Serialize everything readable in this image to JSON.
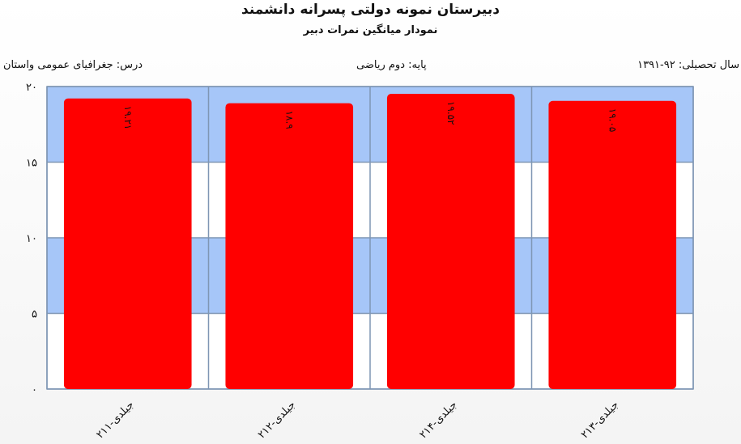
{
  "title": "دبیرستان  نمونه دولتی پسرانه دانشمند",
  "subtitle": "نمودار میانگین نمرات دبیر",
  "meta": {
    "year": "سال تحصیلی: ۹۲-۱۳۹۱",
    "grade": "پایه: دوم ریاضی",
    "course": "درس: جغرافیای  عمومی  واستان"
  },
  "colors": {
    "bar": "#ff0000",
    "band_blue": "#a6c6f8",
    "band_white": "#ffffff",
    "grid": "#7f96b4"
  },
  "chart_data": {
    "type": "bar",
    "title": "نمودار میانگین نمرات دبیر",
    "categories": [
      "جیلدی-۲۱۱",
      "جیلدی-۲۱۲",
      "جیلدی-۲۱۴",
      "جیلدی-۲۱۳"
    ],
    "values": [
      19.21,
      18.9,
      19.52,
      19.05
    ],
    "value_labels": [
      "۱۹.۲۱",
      "۱۸.۹",
      "۱۹.۵۲",
      "۱۹.۰۵"
    ],
    "ylim": [
      0,
      20
    ],
    "yticks": [
      0,
      5,
      10,
      15,
      20
    ],
    "ytick_labels": [
      "۰",
      "۵",
      "۱۰",
      "۱۵",
      "۲۰"
    ],
    "grid": true
  }
}
